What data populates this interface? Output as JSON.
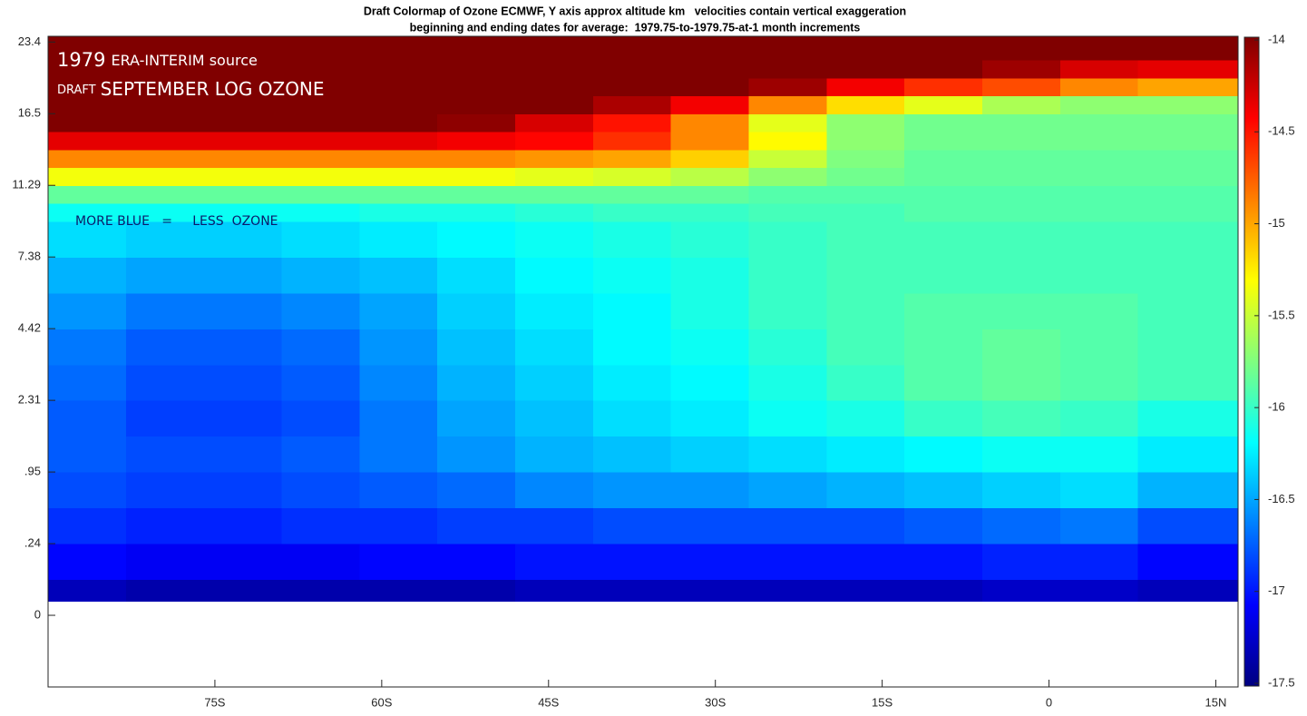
{
  "chart_data": {
    "type": "heatmap",
    "title": "Draft Colormap of Ozone ECMWF, Y axis approx altitude km   velocities contain vertical exaggeration",
    "subtitle": "beginning and ending dates for average:  1979.75-to-1979.75-at-1 month increments",
    "annotations": [
      "1979",
      "ERA-INTERIM source",
      "DRAFT",
      "SEPTEMBER LOG OZONE",
      "MORE BLUE   =     LESS  OZONE"
    ],
    "colormap": "jet",
    "xlim": [
      -90,
      17
    ],
    "ylim": [
      -1,
      8.08
    ],
    "xticks": [
      {
        "value": -75,
        "label": "75S"
      },
      {
        "value": -60,
        "label": "60S"
      },
      {
        "value": -45,
        "label": "45S"
      },
      {
        "value": -30,
        "label": "30S"
      },
      {
        "value": -15,
        "label": "15S"
      },
      0,
      {
        "value": 15,
        "label": "15N"
      }
    ],
    "yticks": [
      0,
      {
        "value": 1,
        "label": ".24"
      },
      {
        "value": 2,
        "label": ".95"
      },
      {
        "value": 3,
        "label": "2.31"
      },
      {
        "value": 4,
        "label": "4.42"
      },
      {
        "value": 5,
        "label": "7.38"
      },
      {
        "value": 6,
        "label": "11.29"
      },
      {
        "value": 7,
        "label": "16.5"
      },
      {
        "value": 8,
        "label": "23.4"
      }
    ],
    "zlim": [
      -17.5,
      -14
    ],
    "zticks": [
      -14,
      -14.5,
      -15,
      -15.5,
      -16,
      -16.5,
      -17,
      -17.5
    ],
    "xedges": [
      -90,
      -83,
      -76,
      -69,
      -62,
      -55,
      -48,
      -41,
      -34,
      -27,
      -20,
      -13,
      -6,
      1,
      8,
      17
    ],
    "yedges": [
      0.2,
      0.5,
      1,
      1.5,
      2,
      2.5,
      3,
      3.5,
      4,
      4.5,
      5,
      5.5,
      5.75,
      6,
      6.25,
      6.5,
      6.75,
      7,
      7.25,
      7.5,
      7.75,
      8.08
    ],
    "values": [
      [
        -17.3,
        -17.35,
        -17.35,
        -17.35,
        -17.35,
        -17.35,
        -17.3,
        -17.3,
        -17.3,
        -17.3,
        -17.3,
        -17.3,
        -17.25,
        -17.25,
        -17.3
      ],
      [
        -17.05,
        -17.1,
        -17.1,
        -17.1,
        -17.05,
        -17.05,
        -17.0,
        -17.0,
        -17.0,
        -17.0,
        -17.0,
        -17.0,
        -16.95,
        -16.95,
        -17.05
      ],
      [
        -16.9,
        -16.95,
        -16.95,
        -16.9,
        -16.9,
        -16.85,
        -16.85,
        -16.8,
        -16.8,
        -16.8,
        -16.8,
        -16.75,
        -16.7,
        -16.65,
        -16.8
      ],
      [
        -16.8,
        -16.85,
        -16.85,
        -16.8,
        -16.75,
        -16.7,
        -16.6,
        -16.55,
        -16.55,
        -16.5,
        -16.45,
        -16.4,
        -16.35,
        -16.3,
        -16.45
      ],
      [
        -16.75,
        -16.8,
        -16.8,
        -16.75,
        -16.65,
        -16.55,
        -16.45,
        -16.4,
        -16.35,
        -16.3,
        -16.25,
        -16.2,
        -16.15,
        -16.15,
        -16.25
      ],
      [
        -16.75,
        -16.85,
        -16.85,
        -16.8,
        -16.65,
        -16.5,
        -16.4,
        -16.3,
        -16.25,
        -16.15,
        -16.1,
        -16.0,
        -15.95,
        -16.0,
        -16.1
      ],
      [
        -16.7,
        -16.8,
        -16.8,
        -16.75,
        -16.6,
        -16.45,
        -16.35,
        -16.25,
        -16.2,
        -16.1,
        -16.0,
        -15.9,
        -15.85,
        -15.9,
        -15.95
      ],
      [
        -16.65,
        -16.75,
        -16.75,
        -16.7,
        -16.55,
        -16.4,
        -16.3,
        -16.2,
        -16.15,
        -16.05,
        -15.95,
        -15.9,
        -15.85,
        -15.9,
        -15.95
      ],
      [
        -16.55,
        -16.65,
        -16.65,
        -16.6,
        -16.5,
        -16.35,
        -16.25,
        -16.2,
        -16.1,
        -16.0,
        -15.95,
        -15.9,
        -15.9,
        -15.9,
        -15.95
      ],
      [
        -16.45,
        -16.5,
        -16.5,
        -16.45,
        -16.4,
        -16.3,
        -16.2,
        -16.15,
        -16.1,
        -16.0,
        -15.95,
        -15.95,
        -15.95,
        -15.95,
        -15.95
      ],
      [
        -16.3,
        -16.35,
        -16.35,
        -16.3,
        -16.25,
        -16.2,
        -16.15,
        -16.1,
        -16.05,
        -16.0,
        -15.95,
        -15.95,
        -15.95,
        -15.95,
        -15.95
      ],
      [
        -16.15,
        -16.15,
        -16.15,
        -16.15,
        -16.1,
        -16.1,
        -16.05,
        -16.0,
        -16.0,
        -15.95,
        -15.95,
        -15.9,
        -15.9,
        -15.9,
        -15.9
      ],
      [
        -15.85,
        -15.85,
        -15.85,
        -15.85,
        -15.85,
        -15.85,
        -15.85,
        -15.85,
        -15.85,
        -15.9,
        -15.9,
        -15.9,
        -15.9,
        -15.9,
        -15.9
      ],
      [
        -15.35,
        -15.35,
        -15.35,
        -15.35,
        -15.35,
        -15.35,
        -15.4,
        -15.45,
        -15.55,
        -15.7,
        -15.8,
        -15.85,
        -15.85,
        -15.85,
        -15.85
      ],
      [
        -14.9,
        -14.9,
        -14.9,
        -14.9,
        -14.9,
        -14.9,
        -14.95,
        -15.0,
        -15.15,
        -15.5,
        -15.75,
        -15.85,
        -15.85,
        -15.85,
        -15.85
      ],
      [
        -14.35,
        -14.35,
        -14.35,
        -14.35,
        -14.35,
        -14.4,
        -14.45,
        -14.6,
        -14.9,
        -15.3,
        -15.7,
        -15.8,
        -15.8,
        -15.8,
        -15.8
      ],
      [
        -14.0,
        -14.0,
        -14.0,
        -14.0,
        -14.0,
        -14.05,
        -14.3,
        -14.5,
        -14.9,
        -15.4,
        -15.7,
        -15.8,
        -15.8,
        -15.8,
        -15.8
      ],
      [
        -14.0,
        -14.0,
        -14.0,
        -14.0,
        -14.0,
        -14.0,
        -14.0,
        -14.15,
        -14.4,
        -14.9,
        -15.2,
        -15.4,
        -15.6,
        -15.7,
        -15.7
      ],
      [
        -14.0,
        -14.0,
        -14.0,
        -14.0,
        -14.0,
        -14.0,
        -14.0,
        -14.0,
        -14.0,
        -14.1,
        -14.4,
        -14.6,
        -14.7,
        -14.9,
        -15.0
      ],
      [
        -14.0,
        -14.0,
        -14.0,
        -14.0,
        -14.0,
        -14.0,
        -14.0,
        -14.0,
        -14.0,
        -14.0,
        -14.0,
        -14.0,
        -14.1,
        -14.3,
        -14.35
      ],
      [
        -14.0,
        -14.0,
        -14.0,
        -14.0,
        -14.0,
        -14.0,
        -14.0,
        -14.0,
        -14.0,
        -14.0,
        -14.0,
        -14.0,
        -14.0,
        -14.0,
        -14.0
      ]
    ]
  }
}
